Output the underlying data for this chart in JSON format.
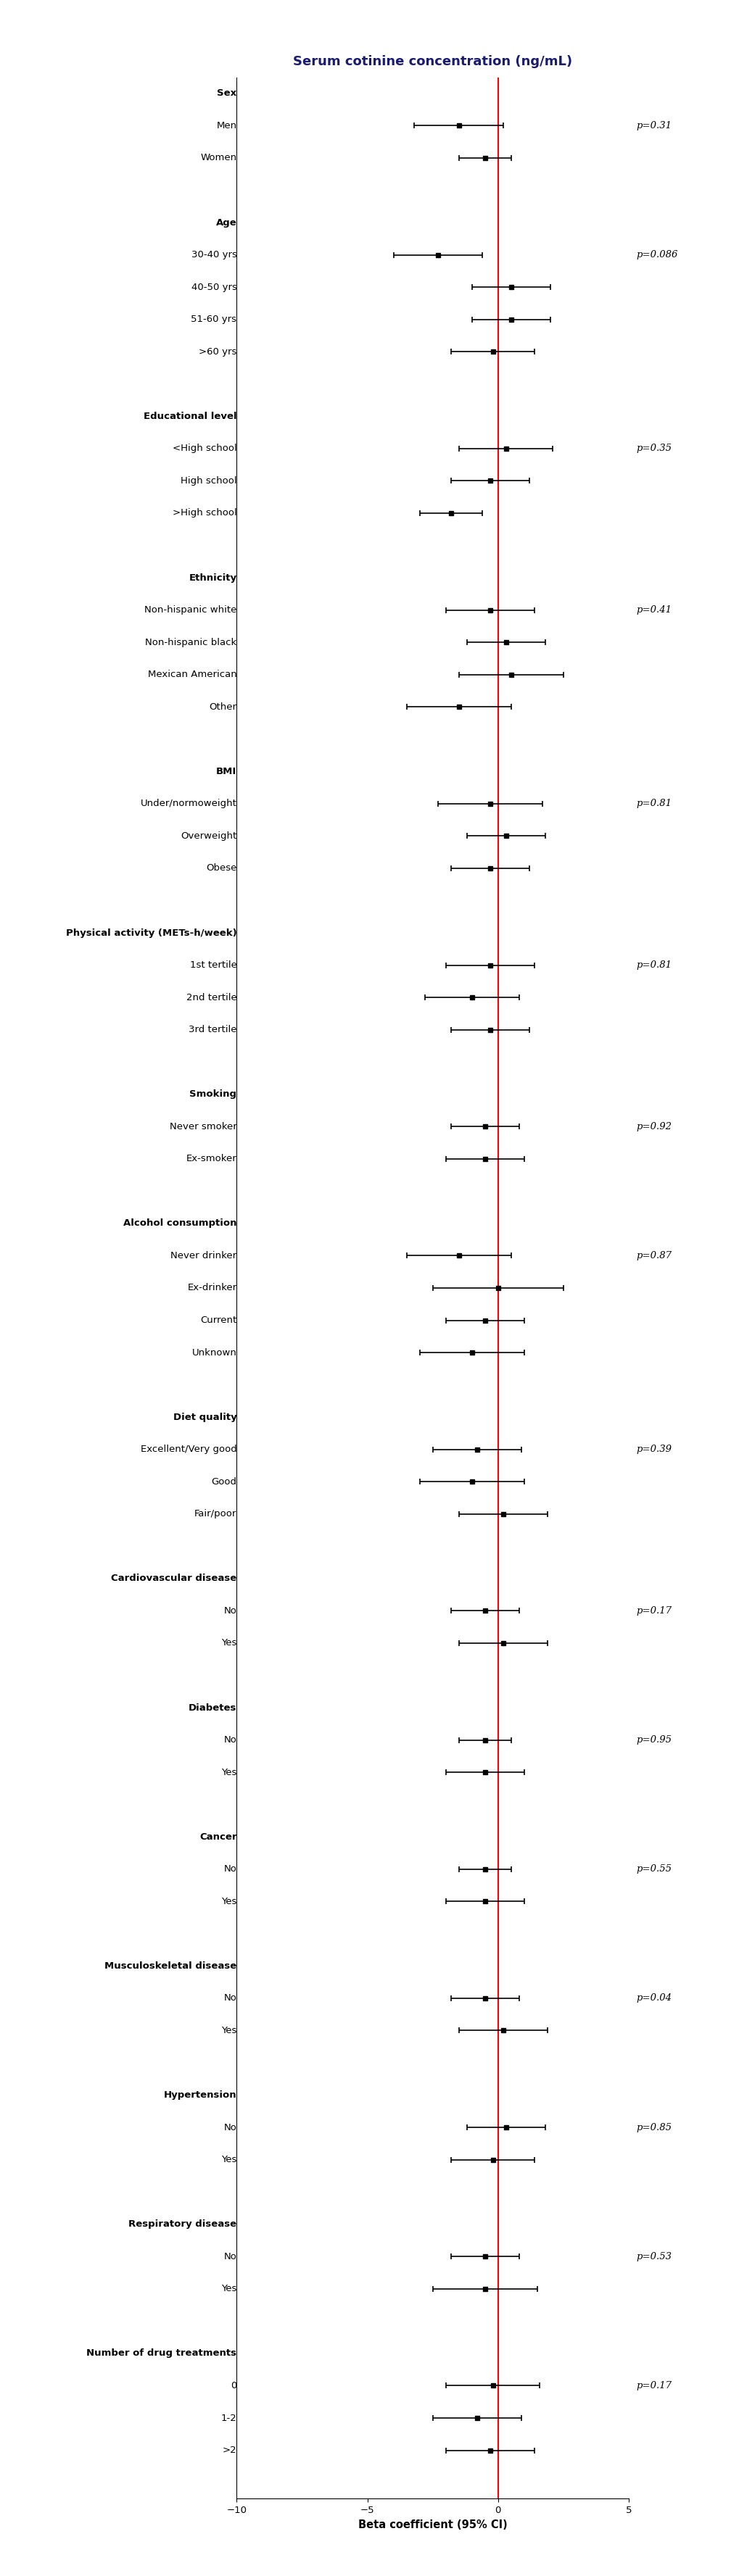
{
  "title": "Serum cotinine concentration (ng/mL)",
  "xlabel": "Beta coefficient (95% CI)",
  "xlim": [
    -10,
    5
  ],
  "xticks": [
    -10,
    -5,
    0,
    5
  ],
  "vline": 0,
  "background_color": "#ffffff",
  "title_color": "#1a1a6e",
  "title_fontsize": 13,
  "label_fontsize": 9.5,
  "header_fontsize": 9.5,
  "pval_fontsize": 9.5,
  "groups": [
    {
      "header": "Sex",
      "pval": "p=0.31",
      "items": [
        {
          "label": "Men",
          "mean": -1.5,
          "lo": -3.2,
          "hi": 0.2
        },
        {
          "label": "Women",
          "mean": -0.5,
          "lo": -1.5,
          "hi": 0.5
        }
      ]
    },
    {
      "header": "Age",
      "pval": "p=0.086",
      "items": [
        {
          "label": "30-40 yrs",
          "mean": -2.3,
          "lo": -4.0,
          "hi": -0.6
        },
        {
          "label": "40-50 yrs",
          "mean": 0.5,
          "lo": -1.0,
          "hi": 2.0
        },
        {
          "label": "51-60 yrs",
          "mean": 0.5,
          "lo": -1.0,
          "hi": 2.0
        },
        {
          "label": ">60 yrs",
          "mean": -0.2,
          "lo": -1.8,
          "hi": 1.4
        }
      ]
    },
    {
      "header": "Educational level",
      "pval": "p=0.35",
      "items": [
        {
          "label": "<High school",
          "mean": 0.3,
          "lo": -1.5,
          "hi": 2.1
        },
        {
          "label": "High school",
          "mean": -0.3,
          "lo": -1.8,
          "hi": 1.2
        },
        {
          "label": ">High school",
          "mean": -1.8,
          "lo": -3.0,
          "hi": -0.6
        }
      ]
    },
    {
      "header": "Ethnicity",
      "pval": "p=0.41",
      "items": [
        {
          "label": "Non-hispanic white",
          "mean": -0.3,
          "lo": -2.0,
          "hi": 1.4
        },
        {
          "label": "Non-hispanic black",
          "mean": 0.3,
          "lo": -1.2,
          "hi": 1.8
        },
        {
          "label": "Mexican American",
          "mean": 0.5,
          "lo": -1.5,
          "hi": 2.5
        },
        {
          "label": "Other",
          "mean": -1.5,
          "lo": -3.5,
          "hi": 0.5
        }
      ]
    },
    {
      "header": "BMI",
      "pval": "p=0.81",
      "items": [
        {
          "label": "Under/normoweight",
          "mean": -0.3,
          "lo": -2.3,
          "hi": 1.7
        },
        {
          "label": "Overweight",
          "mean": 0.3,
          "lo": -1.2,
          "hi": 1.8
        },
        {
          "label": "Obese",
          "mean": -0.3,
          "lo": -1.8,
          "hi": 1.2
        }
      ]
    },
    {
      "header": "Physical activity (METs-h/week)",
      "pval": "p=0.81",
      "items": [
        {
          "label": "1st tertile",
          "mean": -0.3,
          "lo": -2.0,
          "hi": 1.4
        },
        {
          "label": "2nd tertile",
          "mean": -1.0,
          "lo": -2.8,
          "hi": 0.8
        },
        {
          "label": "3rd tertile",
          "mean": -0.3,
          "lo": -1.8,
          "hi": 1.2
        }
      ]
    },
    {
      "header": "Smoking",
      "pval": "p=0.92",
      "items": [
        {
          "label": "Never smoker",
          "mean": -0.5,
          "lo": -1.8,
          "hi": 0.8
        },
        {
          "label": "Ex-smoker",
          "mean": -0.5,
          "lo": -2.0,
          "hi": 1.0
        }
      ]
    },
    {
      "header": "Alcohol consumption",
      "pval": "p=0.87",
      "items": [
        {
          "label": "Never drinker",
          "mean": -1.5,
          "lo": -3.5,
          "hi": 0.5
        },
        {
          "label": "Ex-drinker",
          "mean": 0.0,
          "lo": -2.5,
          "hi": 2.5
        },
        {
          "label": "Current",
          "mean": -0.5,
          "lo": -2.0,
          "hi": 1.0
        },
        {
          "label": "Unknown",
          "mean": -1.0,
          "lo": -3.0,
          "hi": 1.0
        }
      ]
    },
    {
      "header": "Diet quality",
      "pval": "p=0.39",
      "items": [
        {
          "label": "Excellent/Very good",
          "mean": -0.8,
          "lo": -2.5,
          "hi": 0.9
        },
        {
          "label": "Good",
          "mean": -1.0,
          "lo": -3.0,
          "hi": 1.0
        },
        {
          "label": "Fair/poor",
          "mean": 0.2,
          "lo": -1.5,
          "hi": 1.9
        }
      ]
    },
    {
      "header": "Cardiovascular disease",
      "pval": "p=0.17",
      "items": [
        {
          "label": "No",
          "mean": -0.5,
          "lo": -1.8,
          "hi": 0.8
        },
        {
          "label": "Yes",
          "mean": 0.2,
          "lo": -1.5,
          "hi": 1.9
        }
      ]
    },
    {
      "header": "Diabetes",
      "pval": "p=0.95",
      "items": [
        {
          "label": "No",
          "mean": -0.5,
          "lo": -1.5,
          "hi": 0.5
        },
        {
          "label": "Yes",
          "mean": -0.5,
          "lo": -2.0,
          "hi": 1.0
        }
      ]
    },
    {
      "header": "Cancer",
      "pval": "p=0.55",
      "items": [
        {
          "label": "No",
          "mean": -0.5,
          "lo": -1.5,
          "hi": 0.5
        },
        {
          "label": "Yes",
          "mean": -0.5,
          "lo": -2.0,
          "hi": 1.0
        }
      ]
    },
    {
      "header": "Musculoskeletal disease",
      "pval": "p=0.04",
      "items": [
        {
          "label": "No",
          "mean": -0.5,
          "lo": -1.8,
          "hi": 0.8
        },
        {
          "label": "Yes",
          "mean": 0.2,
          "lo": -1.5,
          "hi": 1.9
        }
      ]
    },
    {
      "header": "Hypertension",
      "pval": "p=0.85",
      "items": [
        {
          "label": "No",
          "mean": 0.3,
          "lo": -1.2,
          "hi": 1.8
        },
        {
          "label": "Yes",
          "mean": -0.2,
          "lo": -1.8,
          "hi": 1.4
        }
      ]
    },
    {
      "header": "Respiratory disease",
      "pval": "p=0.53",
      "items": [
        {
          "label": "No",
          "mean": -0.5,
          "lo": -1.8,
          "hi": 0.8
        },
        {
          "label": "Yes",
          "mean": -0.5,
          "lo": -2.5,
          "hi": 1.5
        }
      ]
    },
    {
      "header": "Number of drug treatments",
      "pval": "p=0.17",
      "items": [
        {
          "label": "0",
          "mean": -0.2,
          "lo": -2.0,
          "hi": 1.6
        },
        {
          "label": "1-2",
          "mean": -0.8,
          "lo": -2.5,
          "hi": 0.9
        },
        {
          "label": ">2",
          "mean": -0.3,
          "lo": -2.0,
          "hi": 1.4
        }
      ]
    }
  ]
}
